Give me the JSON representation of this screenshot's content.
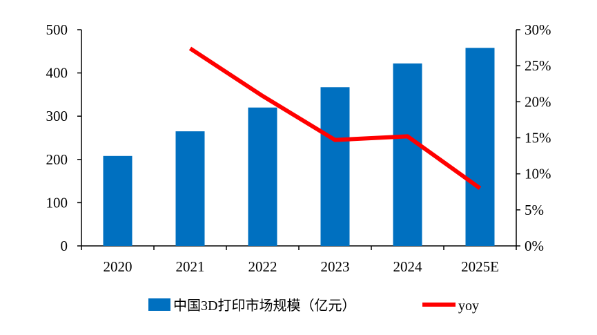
{
  "chart_data": {
    "type": "bar",
    "categories": [
      "2020",
      "2021",
      "2022",
      "2023",
      "2024",
      "2025E"
    ],
    "series": [
      {
        "name": "中国3D打印市场规模（亿元）",
        "type": "bar",
        "axis": "left",
        "color": "#0070C0",
        "values": [
          208,
          265,
          320,
          367,
          422,
          458
        ]
      },
      {
        "name": "yoy",
        "type": "line",
        "axis": "right",
        "color": "#FF0000",
        "values": [
          null,
          0.274,
          0.208,
          0.147,
          0.152,
          0.08
        ]
      }
    ],
    "y_left": {
      "ylim": [
        0,
        500
      ],
      "ticks": [
        "0",
        "100",
        "200",
        "300",
        "400",
        "500"
      ]
    },
    "y_right": {
      "ylim": [
        0,
        0.3
      ],
      "ticks": [
        "0%",
        "5%",
        "10%",
        "15%",
        "20%",
        "25%",
        "30%"
      ]
    },
    "grid": false,
    "legend_position": "bottom"
  }
}
